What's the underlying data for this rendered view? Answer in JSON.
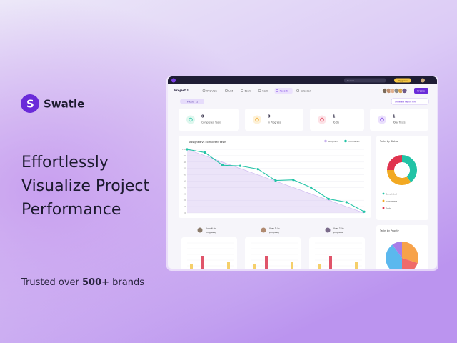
{
  "brand": "Swatle",
  "headline": [
    "Effortlessly",
    "Visualize Project",
    "Performance"
  ],
  "tagline": {
    "prefix": "Trusted over",
    "highlight": "500+",
    "suffix": "brands"
  },
  "dashboard": {
    "search": "Search",
    "upgrade": "Upgrade",
    "project": "Project 1",
    "tabs": [
      "Overview",
      "List",
      "Board",
      "Gantt",
      "Reports",
      "Calendar"
    ],
    "create": "Create",
    "filters": "Filters",
    "filter_count": "1",
    "report_button": "Generate Report File",
    "stats": [
      {
        "value": "0",
        "label": "Completed Tasks"
      },
      {
        "value": "0",
        "label": "In Progress"
      },
      {
        "value": "1",
        "label": "To Do"
      },
      {
        "value": "1",
        "label": "Total Tasks"
      }
    ],
    "user_cards": [
      {
        "name": "User 4 (in",
        "status": "progress)"
      },
      {
        "name": "User 1 (in",
        "status": "progress)"
      },
      {
        "name": "User 2 (in",
        "status": "progress)"
      }
    ]
  },
  "chart_data": [
    {
      "type": "line",
      "title": "Assigned vs completed tasks",
      "categories": [
        null,
        null,
        null,
        null,
        null,
        null,
        null,
        null,
        null,
        null,
        null
      ],
      "series": [
        {
          "name": "Assigned",
          "color": "#c9b2ee",
          "values": [
            100,
            90,
            80,
            70,
            60,
            50,
            40,
            30,
            20,
            10,
            0
          ]
        },
        {
          "name": "Completed",
          "color": "#22c3a6",
          "values": [
            100,
            95,
            75,
            74,
            69,
            51,
            52,
            40,
            22,
            17,
            2
          ]
        }
      ],
      "ylim": [
        0,
        100
      ],
      "yticks": [
        0,
        10,
        20,
        30,
        40,
        50,
        60,
        70,
        80,
        90,
        100
      ],
      "grid": true
    },
    {
      "type": "donut",
      "title": "Tasks by Status",
      "categories": [
        "Completed",
        "In progress",
        "To do"
      ],
      "values": [
        40,
        35,
        25
      ],
      "colors": [
        "#22c3a6",
        "#f2a922",
        "#e0344f"
      ]
    },
    {
      "type": "pie",
      "title": "Tasks by Priority",
      "values": [
        30,
        20,
        40,
        10
      ],
      "colors": [
        "#f7a24a",
        "#ef6a6a",
        "#5bb8ee",
        "#a77de8"
      ]
    }
  ]
}
